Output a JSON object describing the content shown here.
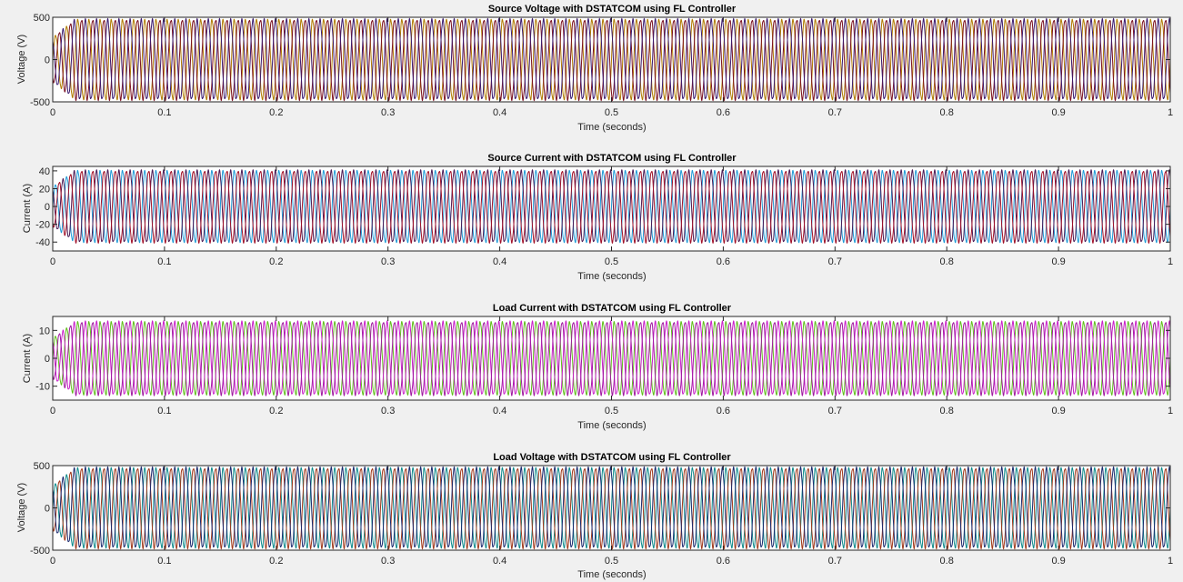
{
  "chart_data": [
    {
      "type": "line",
      "title": "Source Voltage with DSTATCOM using FL Controller",
      "xlabel": "Time (seconds)",
      "ylabel": "Voltage (V)",
      "xlim": [
        0,
        1
      ],
      "ylim": [
        -500,
        500
      ],
      "xticks": [
        0,
        0.1,
        0.2,
        0.3,
        0.4,
        0.5,
        0.6,
        0.7,
        0.8,
        0.9,
        1
      ],
      "xtick_labels": [
        "0",
        "0.1",
        "0.2",
        "0.3",
        "0.4",
        "0.5",
        "0.6",
        "0.7",
        "0.8",
        "0.9",
        "1"
      ],
      "yticks": [
        -500,
        0,
        500
      ],
      "ytick_labels": [
        "-500",
        "0",
        "500"
      ],
      "grid": false,
      "signal": {
        "frequency_hz": 100,
        "amplitude": 470,
        "transient_end_s": 0.02
      },
      "series": [
        {
          "phase_deg": 0,
          "color": "#b07a00"
        },
        {
          "phase_deg": -120,
          "color": "#7a1020"
        },
        {
          "phase_deg": 120,
          "color": "#3a1a6e"
        }
      ]
    },
    {
      "type": "line",
      "title": "Source Current with DSTATCOM using FL Controller",
      "xlabel": "Time (seconds)",
      "ylabel": "Current (A)",
      "xlim": [
        0,
        1
      ],
      "ylim": [
        -50,
        45
      ],
      "xticks": [
        0,
        0.1,
        0.2,
        0.3,
        0.4,
        0.5,
        0.6,
        0.7,
        0.8,
        0.9,
        1
      ],
      "xtick_labels": [
        "0",
        "0.1",
        "0.2",
        "0.3",
        "0.4",
        "0.5",
        "0.6",
        "0.7",
        "0.8",
        "0.9",
        "1"
      ],
      "yticks": [
        -40,
        -20,
        0,
        20,
        40
      ],
      "ytick_labels": [
        "-40",
        "-20",
        "0",
        "20",
        "40"
      ],
      "grid": false,
      "signal": {
        "frequency_hz": 100,
        "amplitude": 40,
        "transient_end_s": 0.02
      },
      "series": [
        {
          "phase_deg": 0,
          "color": "#1e9ad6"
        },
        {
          "phase_deg": 120,
          "color": "#4a1a55"
        },
        {
          "phase_deg": -120,
          "color": "#a01028"
        }
      ]
    },
    {
      "type": "line",
      "title": "Load Current with DSTATCOM using FL Controller",
      "xlabel": "Time (seconds)",
      "ylabel": "Current (A)",
      "xlim": [
        0,
        1
      ],
      "ylim": [
        -15,
        15
      ],
      "xticks": [
        0,
        0.1,
        0.2,
        0.3,
        0.4,
        0.5,
        0.6,
        0.7,
        0.8,
        0.9,
        1
      ],
      "xtick_labels": [
        "0",
        "0.1",
        "0.2",
        "0.3",
        "0.4",
        "0.5",
        "0.6",
        "0.7",
        "0.8",
        "0.9",
        "1"
      ],
      "yticks": [
        -10,
        0,
        10
      ],
      "ytick_labels": [
        "-10",
        "0",
        "10"
      ],
      "grid": false,
      "signal": {
        "frequency_hz": 100,
        "amplitude": 13,
        "transient_end_s": 0.02
      },
      "series": [
        {
          "phase_deg": 0,
          "color": "#5fbf1a"
        },
        {
          "phase_deg": 120,
          "color": "#c81ec8"
        },
        {
          "phase_deg": -120,
          "color": "#a01aa0"
        }
      ]
    },
    {
      "type": "line",
      "title": "Load Voltage with DSTATCOM using FL Controller",
      "xlabel": "Time (seconds)",
      "ylabel": "Voltage (V)",
      "xlim": [
        0,
        1
      ],
      "ylim": [
        -500,
        500
      ],
      "xticks": [
        0,
        0.1,
        0.2,
        0.3,
        0.4,
        0.5,
        0.6,
        0.7,
        0.8,
        0.9,
        1
      ],
      "xtick_labels": [
        "0",
        "0.1",
        "0.2",
        "0.3",
        "0.4",
        "0.5",
        "0.6",
        "0.7",
        "0.8",
        "0.9",
        "1"
      ],
      "yticks": [
        -500,
        0,
        500
      ],
      "ytick_labels": [
        "-500",
        "0",
        "500"
      ],
      "grid": false,
      "signal": {
        "frequency_hz": 100,
        "amplitude": 470,
        "transient_end_s": 0.02
      },
      "series": [
        {
          "phase_deg": 0,
          "color": "#0e8a8a"
        },
        {
          "phase_deg": -120,
          "color": "#a0381a"
        },
        {
          "phase_deg": 120,
          "color": "#1a2a6e"
        }
      ]
    }
  ]
}
